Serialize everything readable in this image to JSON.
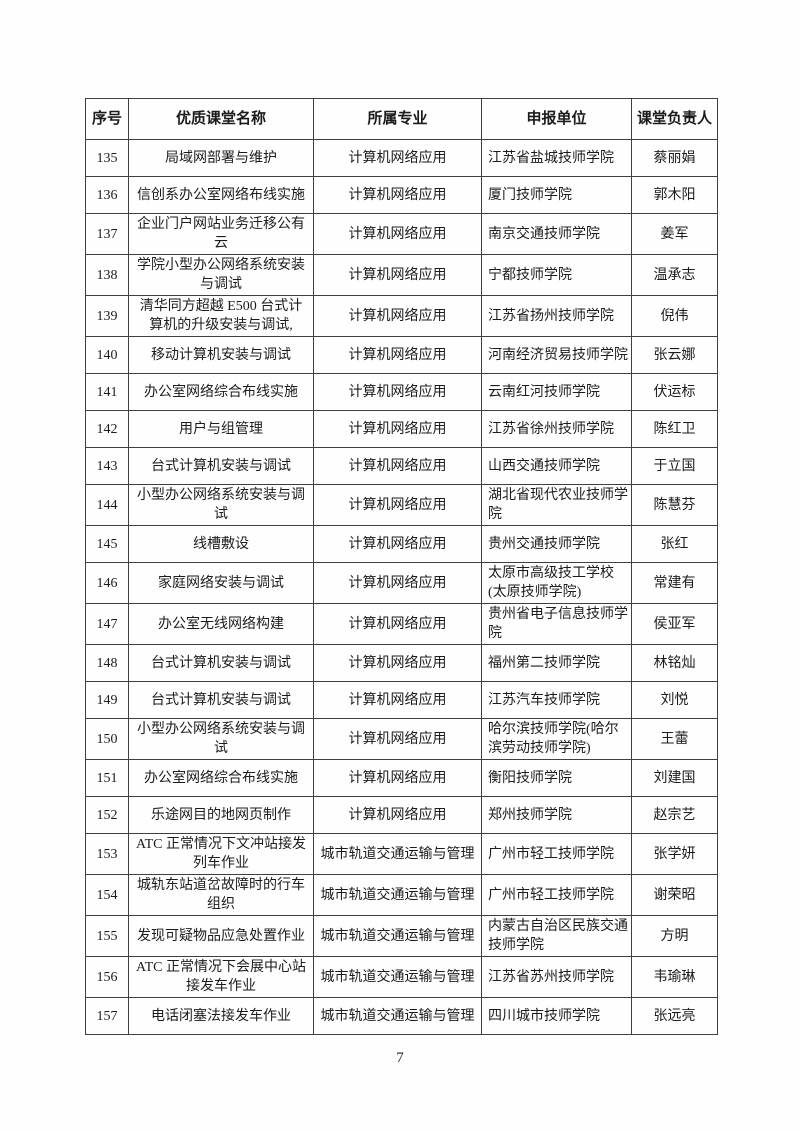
{
  "page": {
    "number": "7"
  },
  "table": {
    "headers": [
      "序号",
      "优质课堂名称",
      "所属专业",
      "申报单位",
      "课堂负责人"
    ],
    "rows": [
      {
        "no": "135",
        "course": "局域网部署与维护",
        "major": "计算机网络应用",
        "unit": "江苏省盐城技师学院",
        "leader": "蔡丽娟"
      },
      {
        "no": "136",
        "course": "信创系办公室网络布线实施",
        "major": "计算机网络应用",
        "unit": "厦门技师学院",
        "leader": "郭木阳"
      },
      {
        "no": "137",
        "course": "企业门户网站业务迁移公有云",
        "major": "计算机网络应用",
        "unit": "南京交通技师学院",
        "leader": "姜军"
      },
      {
        "no": "138",
        "course": "学院小型办公网络系统安装与调试",
        "major": "计算机网络应用",
        "unit": "宁都技师学院",
        "leader": "温承志"
      },
      {
        "no": "139",
        "course": "清华同方超越 E500 台式计算机的升级安装与调试,",
        "major": "计算机网络应用",
        "unit": "江苏省扬州技师学院",
        "leader": "倪伟"
      },
      {
        "no": "140",
        "course": "移动计算机安装与调试",
        "major": "计算机网络应用",
        "unit": "河南经济贸易技师学院",
        "leader": "张云娜"
      },
      {
        "no": "141",
        "course": "办公室网络综合布线实施",
        "major": "计算机网络应用",
        "unit": "云南红河技师学院",
        "leader": "伏运标"
      },
      {
        "no": "142",
        "course": "用户与组管理",
        "major": "计算机网络应用",
        "unit": "江苏省徐州技师学院",
        "leader": "陈红卫"
      },
      {
        "no": "143",
        "course": "台式计算机安装与调试",
        "major": "计算机网络应用",
        "unit": "山西交通技师学院",
        "leader": "于立国"
      },
      {
        "no": "144",
        "course": "小型办公网络系统安装与调试",
        "major": "计算机网络应用",
        "unit": "湖北省现代农业技师学院",
        "leader": "陈慧芬"
      },
      {
        "no": "145",
        "course": "线槽敷设",
        "major": "计算机网络应用",
        "unit": "贵州交通技师学院",
        "leader": "张红"
      },
      {
        "no": "146",
        "course": "家庭网络安装与调试",
        "major": "计算机网络应用",
        "unit": "太原市高级技工学校(太原技师学院)",
        "leader": "常建有"
      },
      {
        "no": "147",
        "course": "办公室无线网络构建",
        "major": "计算机网络应用",
        "unit": "贵州省电子信息技师学院",
        "leader": "侯亚军"
      },
      {
        "no": "148",
        "course": "台式计算机安装与调试",
        "major": "计算机网络应用",
        "unit": "福州第二技师学院",
        "leader": "林铭灿"
      },
      {
        "no": "149",
        "course": "台式计算机安装与调试",
        "major": "计算机网络应用",
        "unit": "江苏汽车技师学院",
        "leader": "刘悦"
      },
      {
        "no": "150",
        "course": "小型办公网络系统安装与调试",
        "major": "计算机网络应用",
        "unit": "哈尔滨技师学院(哈尔滨劳动技师学院)",
        "leader": "王蕾"
      },
      {
        "no": "151",
        "course": "办公室网络综合布线实施",
        "major": "计算机网络应用",
        "unit": "衡阳技师学院",
        "leader": "刘建国"
      },
      {
        "no": "152",
        "course": "乐途网目的地网页制作",
        "major": "计算机网络应用",
        "unit": "郑州技师学院",
        "leader": "赵宗艺"
      },
      {
        "no": "153",
        "course": "ATC 正常情况下文冲站接发列车作业",
        "major": "城市轨道交通运输与管理",
        "unit": "广州市轻工技师学院",
        "leader": "张学妍"
      },
      {
        "no": "154",
        "course": "城轨东站道岔故障时的行车组织",
        "major": "城市轨道交通运输与管理",
        "unit": "广州市轻工技师学院",
        "leader": "谢荣昭"
      },
      {
        "no": "155",
        "course": "发现可疑物品应急处置作业",
        "major": "城市轨道交通运输与管理",
        "unit": "内蒙古自治区民族交通技师学院",
        "leader": "方明"
      },
      {
        "no": "156",
        "course": "ATC 正常情况下会展中心站接发车作业",
        "major": "城市轨道交通运输与管理",
        "unit": "江苏省苏州技师学院",
        "leader": "韦瑜琳"
      },
      {
        "no": "157",
        "course": "电话闭塞法接发车作业",
        "major": "城市轨道交通运输与管理",
        "unit": "四川城市技师学院",
        "leader": "张远亮"
      }
    ]
  }
}
